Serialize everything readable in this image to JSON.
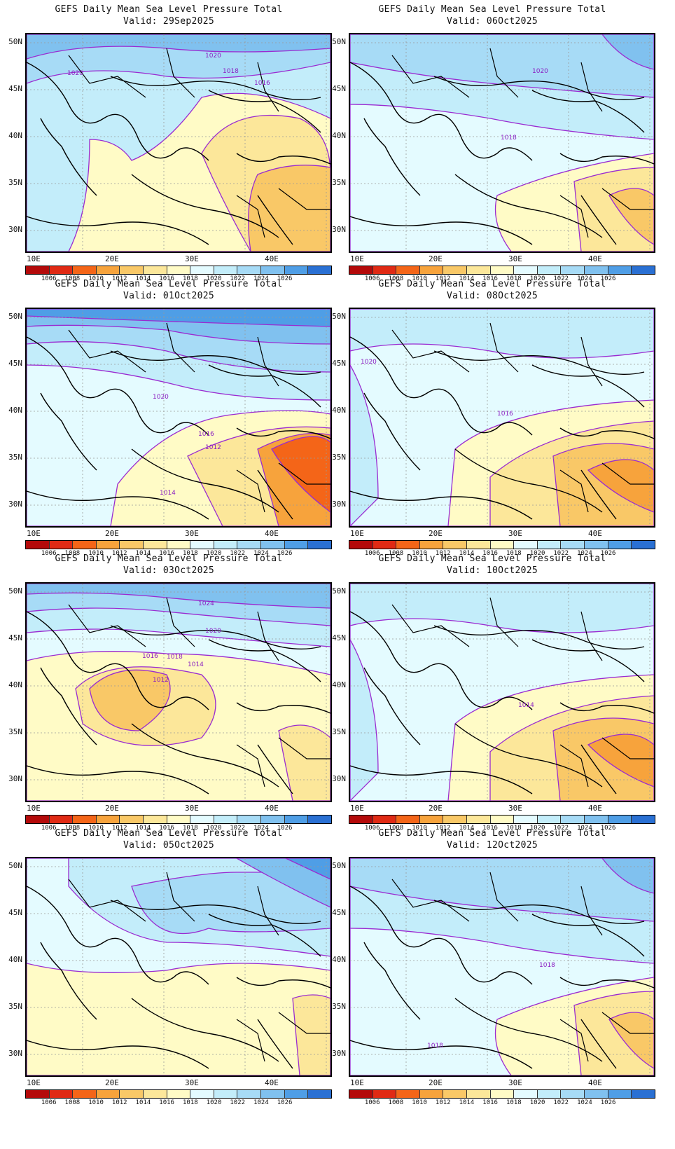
{
  "colorbar": {
    "labels": [
      "1006",
      "1008",
      "1010",
      "1012",
      "1014",
      "1016",
      "1018",
      "1020",
      "1022",
      "1024",
      "1026"
    ],
    "colors": [
      "#b40a0a",
      "#e02a14",
      "#f46518",
      "#f7a33c",
      "#f9c867",
      "#fce79a",
      "#fffbc6",
      "#e4fbff",
      "#c3edfa",
      "#a7dbf6",
      "#80c1ef",
      "#4f9ee6",
      "#2a70d3"
    ]
  },
  "axes": {
    "lat_labels": [
      "50N",
      "45N",
      "40N",
      "35N",
      "30N"
    ],
    "lon_labels": [
      "10E",
      "20E",
      "30E",
      "40E"
    ]
  },
  "panels": [
    {
      "title": "GEFS Daily Mean Sea Level Pressure Total",
      "valid": "Valid: 29Sep2025",
      "contours": [
        "1020",
        "1020",
        "1018",
        "1016"
      ],
      "regime": "mixed-warm"
    },
    {
      "title": "GEFS Daily Mean Sea Level Pressure Total",
      "valid": "Valid: 06Oct2025",
      "contours": [
        "1020",
        "1018"
      ],
      "regime": "high-north"
    },
    {
      "title": "GEFS Daily Mean Sea Level Pressure Total",
      "valid": "Valid: 01Oct2025",
      "contours": [
        "1020",
        "1016",
        "1012",
        "1014"
      ],
      "regime": "strong-north"
    },
    {
      "title": "GEFS Daily Mean Sea Level Pressure Total",
      "valid": "Valid: 08Oct2025",
      "contours": [
        "1020",
        "1016"
      ],
      "regime": "mixed-cool"
    },
    {
      "title": "GEFS Daily Mean Sea Level Pressure Total",
      "valid": "Valid: 03Oct2025",
      "contours": [
        "1024",
        "1020",
        "1018",
        "1016",
        "1014",
        "1012"
      ],
      "regime": "strong-north-low-center"
    },
    {
      "title": "GEFS Daily Mean Sea Level Pressure Total",
      "valid": "Valid: 10Oct2025",
      "contours": [
        "1014"
      ],
      "regime": "mixed-cool"
    },
    {
      "title": "GEFS Daily Mean Sea Level Pressure Total",
      "valid": "Valid: 05Oct2025",
      "contours": [],
      "regime": "moderate-north"
    },
    {
      "title": "GEFS Daily Mean Sea Level Pressure Total",
      "valid": "Valid: 12Oct2025",
      "contours": [
        "1018",
        "1018"
      ],
      "regime": "high-north"
    }
  ]
}
